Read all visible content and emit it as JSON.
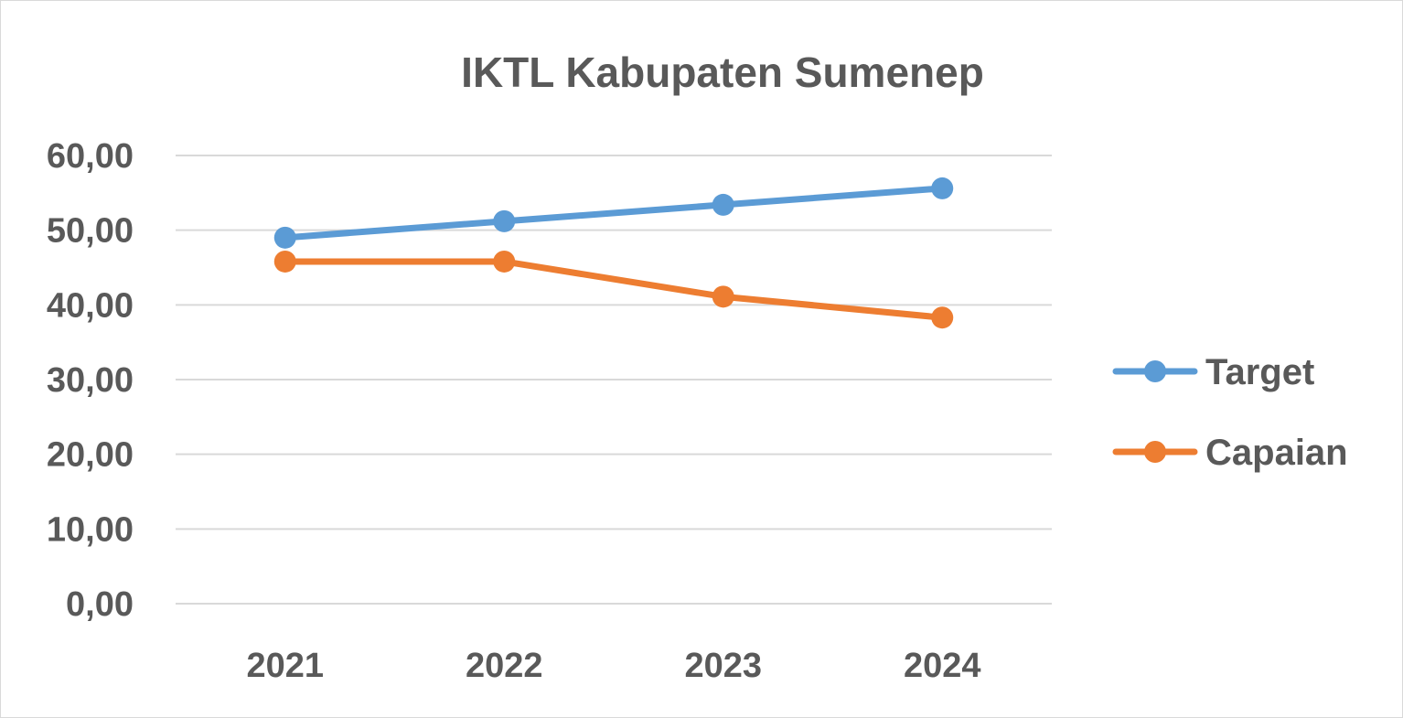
{
  "chart_data": {
    "type": "line",
    "title": "IKTL Kabupaten Sumenep",
    "xlabel": "",
    "ylabel": "",
    "categories": [
      "2021",
      "2022",
      "2023",
      "2024"
    ],
    "y_ticks": [
      "0,00",
      "10,00",
      "20,00",
      "30,00",
      "40,00",
      "50,00",
      "60,00"
    ],
    "ylim": [
      0,
      60
    ],
    "grid": true,
    "legend_position": "right",
    "series": [
      {
        "name": "Target",
        "color": "#5b9bd5",
        "values": [
          49.0,
          51.2,
          53.4,
          55.6
        ]
      },
      {
        "name": "Capaian",
        "color": "#ed7d31",
        "values": [
          45.8,
          45.8,
          41.1,
          38.3
        ]
      }
    ]
  }
}
